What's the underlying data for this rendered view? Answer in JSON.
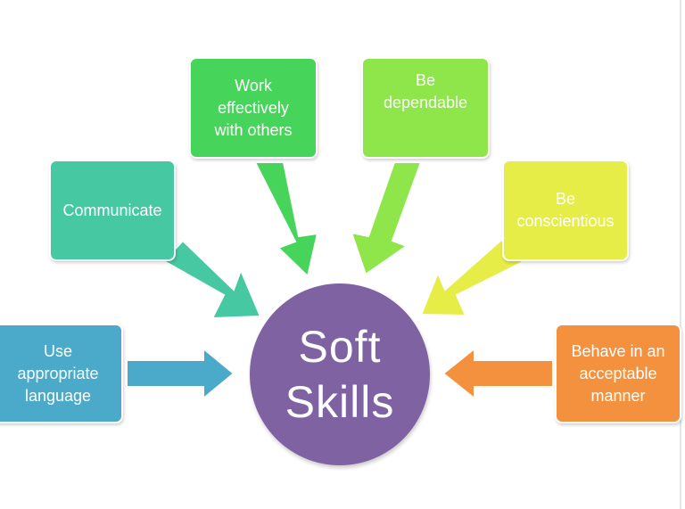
{
  "center": {
    "line1": "Soft",
    "line2": "Skills",
    "color": "#7e62a2"
  },
  "boxes": [
    {
      "id": "use-appropriate-language",
      "text": "Use\nappropriate\nlanguage",
      "color": "#4ba9c9"
    },
    {
      "id": "communicate",
      "text": "Communicate",
      "color": "#46c9a3"
    },
    {
      "id": "work-effectively",
      "text": "Work\neffectively\nwith others",
      "color": "#47d45a"
    },
    {
      "id": "be-dependable",
      "text": "Be\ndependable",
      "color": "#8ee64a"
    },
    {
      "id": "be-conscientious",
      "text": "Be\nconscientious",
      "color": "#e6ed46"
    },
    {
      "id": "behave-acceptable",
      "text": "Behave in an\nacceptable\nmanner",
      "color": "#f3913e"
    }
  ],
  "arrow_colors": {
    "use-appropriate-language": "#4ba9c9",
    "communicate": "#46c9a3",
    "work-effectively": "#47d45a",
    "be-dependable": "#8ee64a",
    "be-conscientious": "#e6ed46",
    "behave-acceptable": "#f3913e"
  },
  "frame_color": "#e6e6e6"
}
